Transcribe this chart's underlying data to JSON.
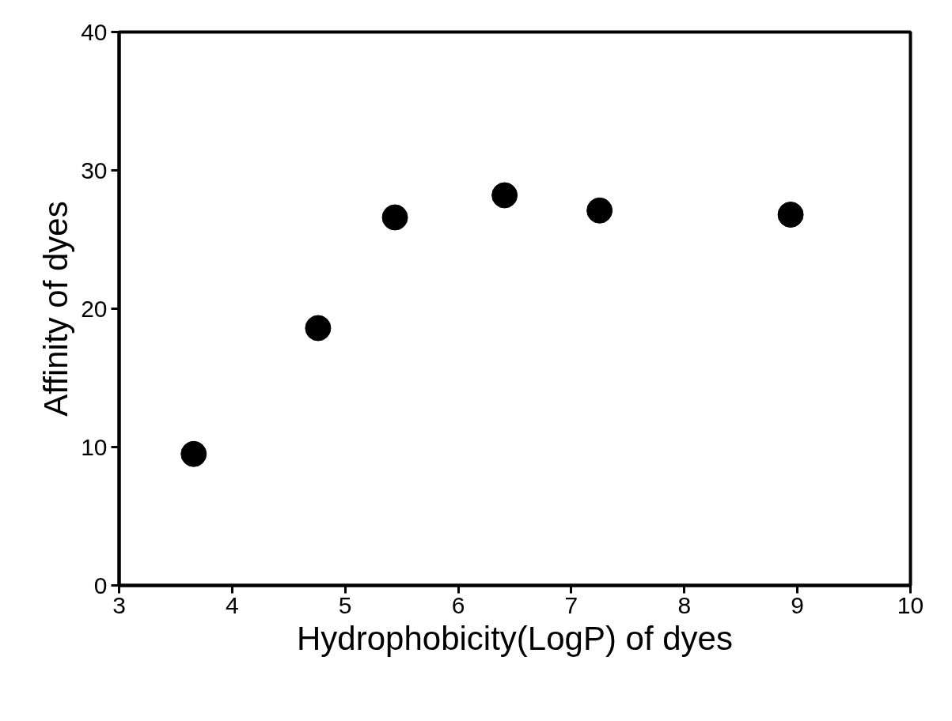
{
  "chart_data": {
    "type": "scatter",
    "xlabel": "Hydrophobicity(LogP) of dyes",
    "ylabel": "Affinity of dyes",
    "x": [
      3.66,
      4.76,
      5.44,
      6.41,
      7.25,
      8.94
    ],
    "series": [
      {
        "color": "#000000",
        "values": [
          9.5,
          18.6,
          26.6,
          28.2,
          27.1,
          26.8
        ]
      }
    ],
    "xlim": [
      3,
      10
    ],
    "ylim": [
      0,
      40
    ],
    "xticks": [
      3,
      4,
      5,
      6,
      7,
      8,
      9,
      10
    ],
    "yticks": [
      0,
      10,
      20,
      30,
      40
    ],
    "marker": "circle",
    "grid": false
  }
}
